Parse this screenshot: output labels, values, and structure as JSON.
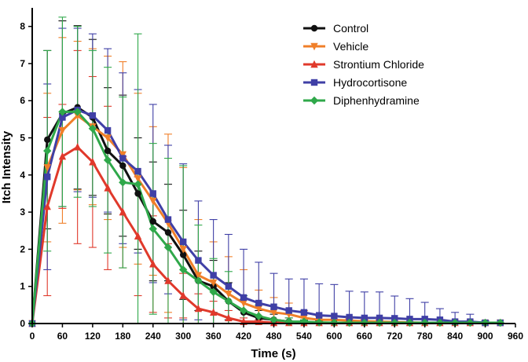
{
  "chart_data": {
    "type": "line",
    "title": "",
    "xlabel": "Time (s)",
    "ylabel": "Itch Intensity",
    "xlim": [
      0,
      960
    ],
    "ylim": [
      0,
      8.5
    ],
    "xticks": [
      0,
      60,
      120,
      180,
      240,
      300,
      360,
      420,
      480,
      540,
      600,
      660,
      720,
      780,
      840,
      900,
      960
    ],
    "yticks": [
      0,
      1,
      2,
      3,
      4,
      5,
      6,
      7,
      8
    ],
    "xtick_labels": [
      "0",
      "60",
      "120",
      "180",
      "240",
      "300",
      "360",
      "420",
      "480",
      "540",
      "600",
      "660",
      "720",
      "780",
      "840",
      "900",
      "960"
    ],
    "ytick_labels": [
      "0",
      "1",
      "2",
      "3",
      "4",
      "5",
      "6",
      "7",
      "8"
    ],
    "legend_position": "top-right",
    "x": [
      0,
      30,
      60,
      90,
      120,
      150,
      180,
      210,
      240,
      270,
      300,
      330,
      360,
      390,
      420,
      450,
      480,
      510,
      540,
      570,
      600,
      630,
      660,
      690,
      720,
      750,
      780,
      810,
      840,
      870,
      900,
      930
    ],
    "series": [
      {
        "name": "Control",
        "color": "#111111",
        "marker": "circle",
        "values": [
          0,
          4.95,
          5.65,
          5.82,
          5.55,
          4.65,
          4.25,
          3.5,
          2.75,
          2.45,
          1.85,
          1.15,
          1.0,
          0.6,
          0.3,
          0.15,
          0.1,
          0.05,
          0.03,
          0.02,
          0.02,
          0.02,
          0.02,
          0.02,
          0.02,
          0.02,
          0.02,
          0.02,
          0.02,
          0.02,
          0.02,
          0.02
        ],
        "errors": [
          0,
          2.4,
          2.5,
          2.2,
          2.1,
          1.7,
          1.9,
          1.5,
          1.6,
          1.3,
          1.2,
          0.8,
          0.7,
          0.5,
          0.35,
          0.2,
          0.15,
          0.1,
          0.05,
          0.05,
          0,
          0,
          0,
          0,
          0,
          0,
          0,
          0,
          0,
          0,
          0,
          0
        ]
      },
      {
        "name": "Vehicle",
        "color": "#f07f29",
        "marker": "triangle-down",
        "values": [
          0,
          4.2,
          5.2,
          5.6,
          5.3,
          5.0,
          4.55,
          3.9,
          3.3,
          2.7,
          2.0,
          1.3,
          1.1,
          0.8,
          0.55,
          0.4,
          0.3,
          0.25,
          0.15,
          0.1,
          0.1,
          0.08,
          0.06,
          0.05,
          0.04,
          0.03,
          0.02,
          0.02,
          0.02,
          0.02,
          0.02,
          0.02
        ],
        "errors": [
          0,
          2.0,
          2.5,
          2.0,
          2.1,
          2.2,
          2.5,
          2.3,
          2.0,
          2.4,
          2.2,
          1.5,
          1.1,
          1.0,
          0.9,
          0.5,
          0.4,
          0.3,
          0.2,
          0.1,
          0.1,
          0.05,
          0.05,
          0.05,
          0.02,
          0.02,
          0,
          0,
          0,
          0,
          0,
          0
        ]
      },
      {
        "name": "Strontium Chloride",
        "color": "#e0392b",
        "marker": "triangle-up",
        "values": [
          0,
          3.15,
          4.5,
          4.75,
          4.35,
          3.65,
          3.0,
          2.35,
          1.6,
          1.15,
          0.75,
          0.4,
          0.3,
          0.15,
          0.05,
          0.05,
          0.02,
          0.02,
          0.02,
          0.02,
          0.02,
          0.02,
          0.02,
          0.02,
          0.02,
          0.02,
          0.02,
          0.02,
          0.02,
          0.02,
          0.02,
          0.02
        ],
        "errors": [
          0,
          2.4,
          1.4,
          2.6,
          2.3,
          2.2,
          1.5,
          1.6,
          1.3,
          1.0,
          0.6,
          0.4,
          0.3,
          0.2,
          0.1,
          0.05,
          0.02,
          0,
          0,
          0,
          0,
          0,
          0,
          0,
          0,
          0,
          0,
          0,
          0,
          0,
          0,
          0
        ]
      },
      {
        "name": "Hydrocortisone",
        "color": "#3f3fa6",
        "marker": "square",
        "values": [
          0,
          3.95,
          5.55,
          5.75,
          5.6,
          5.2,
          4.45,
          4.1,
          3.5,
          2.8,
          2.2,
          1.7,
          1.3,
          1.0,
          0.7,
          0.55,
          0.45,
          0.35,
          0.3,
          0.22,
          0.2,
          0.17,
          0.15,
          0.15,
          0.14,
          0.12,
          0.12,
          0.1,
          0.05,
          0.05,
          0.02,
          0.02
        ],
        "errors": [
          0,
          2.5,
          2.4,
          2.2,
          2.2,
          2.2,
          2.3,
          2.2,
          2.4,
          2.0,
          2.1,
          1.6,
          1.5,
          1.4,
          1.3,
          1.1,
          0.9,
          0.85,
          0.9,
          0.85,
          0.85,
          0.7,
          0.7,
          0.7,
          0.6,
          0.55,
          0.45,
          0.3,
          0.25,
          0.2,
          0.05,
          0
        ]
      },
      {
        "name": "Diphenhydramine",
        "color": "#2fa84a",
        "marker": "diamond",
        "values": [
          0,
          4.65,
          5.7,
          5.7,
          5.25,
          4.4,
          3.8,
          3.75,
          2.55,
          2.05,
          1.45,
          1.15,
          0.85,
          0.6,
          0.35,
          0.2,
          0.1,
          0.05,
          0.05,
          0.03,
          0.02,
          0.02,
          0.02,
          0.02,
          0.02,
          0.02,
          0.02,
          0.02,
          0.02,
          0.02,
          0.02,
          0.02
        ],
        "errors": [
          0,
          2.7,
          2.55,
          2.3,
          2.1,
          2.5,
          2.3,
          4.05,
          2.3,
          2.4,
          2.8,
          1.5,
          0.9,
          0.8,
          0.4,
          0.3,
          0.2,
          0.1,
          0.05,
          0.02,
          0,
          0,
          0,
          0,
          0,
          0,
          0,
          0,
          0,
          0,
          0,
          0
        ]
      }
    ]
  }
}
